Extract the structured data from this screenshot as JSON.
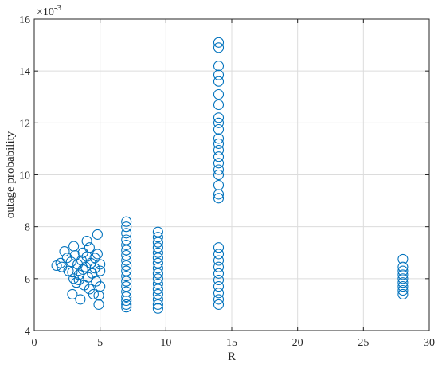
{
  "chart_data": {
    "type": "scatter",
    "xlabel": "R",
    "ylabel": "outage probability",
    "y_multiplier_label": "×10",
    "y_multiplier_exponent": "-3",
    "xlim": [
      0,
      30
    ],
    "ylim": [
      4,
      16
    ],
    "x_ticks": [
      "0",
      "5",
      "10",
      "15",
      "20",
      "25",
      "30"
    ],
    "y_ticks": [
      "4",
      "6",
      "8",
      "10",
      "12",
      "14",
      "16"
    ],
    "grid": true,
    "marker": "open-circle",
    "color": "#0072BD",
    "series": [
      {
        "points": [
          [
            1.7,
            6.5
          ],
          [
            2.0,
            6.6
          ],
          [
            2.1,
            6.45
          ],
          [
            2.3,
            7.05
          ],
          [
            2.5,
            6.8
          ],
          [
            2.6,
            6.3
          ],
          [
            2.8,
            6.65
          ],
          [
            2.9,
            6.25
          ],
          [
            3.0,
            6.0
          ],
          [
            3.0,
            7.25
          ],
          [
            3.1,
            6.9
          ],
          [
            3.2,
            5.85
          ],
          [
            3.3,
            6.55
          ],
          [
            3.4,
            6.15
          ],
          [
            3.5,
            5.2
          ],
          [
            3.6,
            6.7
          ],
          [
            3.7,
            6.35
          ],
          [
            3.7,
            7.0
          ],
          [
            3.8,
            5.75
          ],
          [
            3.9,
            6.45
          ],
          [
            4.0,
            7.45
          ],
          [
            4.0,
            6.85
          ],
          [
            4.1,
            6.05
          ],
          [
            4.2,
            5.6
          ],
          [
            4.2,
            7.2
          ],
          [
            4.3,
            6.6
          ],
          [
            4.4,
            6.2
          ],
          [
            4.5,
            5.4
          ],
          [
            4.6,
            6.8
          ],
          [
            4.6,
            6.4
          ],
          [
            4.7,
            5.9
          ],
          [
            4.8,
            7.7
          ],
          [
            4.8,
            6.95
          ],
          [
            4.9,
            5.0
          ],
          [
            4.9,
            5.35
          ],
          [
            5.0,
            6.3
          ],
          [
            5.0,
            5.7
          ],
          [
            5.0,
            6.55
          ],
          [
            2.9,
            5.4
          ],
          [
            3.4,
            5.95
          ],
          [
            7.0,
            4.9
          ],
          [
            7.0,
            5.0
          ],
          [
            7.0,
            5.15
          ],
          [
            7.0,
            5.3
          ],
          [
            7.0,
            5.5
          ],
          [
            7.0,
            5.7
          ],
          [
            7.0,
            5.9
          ],
          [
            7.0,
            6.1
          ],
          [
            7.0,
            6.3
          ],
          [
            7.0,
            6.5
          ],
          [
            7.0,
            6.7
          ],
          [
            7.0,
            6.9
          ],
          [
            7.0,
            7.1
          ],
          [
            7.0,
            7.3
          ],
          [
            7.0,
            7.5
          ],
          [
            7.0,
            7.75
          ],
          [
            7.0,
            8.0
          ],
          [
            7.0,
            8.2
          ],
          [
            9.4,
            4.85
          ],
          [
            9.4,
            5.0
          ],
          [
            9.4,
            5.2
          ],
          [
            9.4,
            5.4
          ],
          [
            9.4,
            5.6
          ],
          [
            9.4,
            5.8
          ],
          [
            9.4,
            6.0
          ],
          [
            9.4,
            6.2
          ],
          [
            9.4,
            6.4
          ],
          [
            9.4,
            6.6
          ],
          [
            9.4,
            6.8
          ],
          [
            9.4,
            7.0
          ],
          [
            9.4,
            7.2
          ],
          [
            9.4,
            7.4
          ],
          [
            9.4,
            7.6
          ],
          [
            9.4,
            7.8
          ],
          [
            14.0,
            5.0
          ],
          [
            14.0,
            5.2
          ],
          [
            14.0,
            5.45
          ],
          [
            14.0,
            5.7
          ],
          [
            14.0,
            5.95
          ],
          [
            14.0,
            6.2
          ],
          [
            14.0,
            6.45
          ],
          [
            14.0,
            6.7
          ],
          [
            14.0,
            6.95
          ],
          [
            14.0,
            7.2
          ],
          [
            14.0,
            9.1
          ],
          [
            14.0,
            9.25
          ],
          [
            14.0,
            9.6
          ],
          [
            14.0,
            10.0
          ],
          [
            14.0,
            10.2
          ],
          [
            14.0,
            10.45
          ],
          [
            14.0,
            10.7
          ],
          [
            14.0,
            10.95
          ],
          [
            14.0,
            11.2
          ],
          [
            14.0,
            11.4
          ],
          [
            14.0,
            11.75
          ],
          [
            14.0,
            12.0
          ],
          [
            14.0,
            12.2
          ],
          [
            14.0,
            12.7
          ],
          [
            14.0,
            13.1
          ],
          [
            14.0,
            13.6
          ],
          [
            14.0,
            13.85
          ],
          [
            14.0,
            14.2
          ],
          [
            14.0,
            14.9
          ],
          [
            14.0,
            15.1
          ],
          [
            28.0,
            5.4
          ],
          [
            28.0,
            5.55
          ],
          [
            28.0,
            5.7
          ],
          [
            28.0,
            5.85
          ],
          [
            28.0,
            6.0
          ],
          [
            28.0,
            6.15
          ],
          [
            28.0,
            6.3
          ],
          [
            28.0,
            6.45
          ],
          [
            28.0,
            6.75
          ]
        ]
      }
    ]
  }
}
